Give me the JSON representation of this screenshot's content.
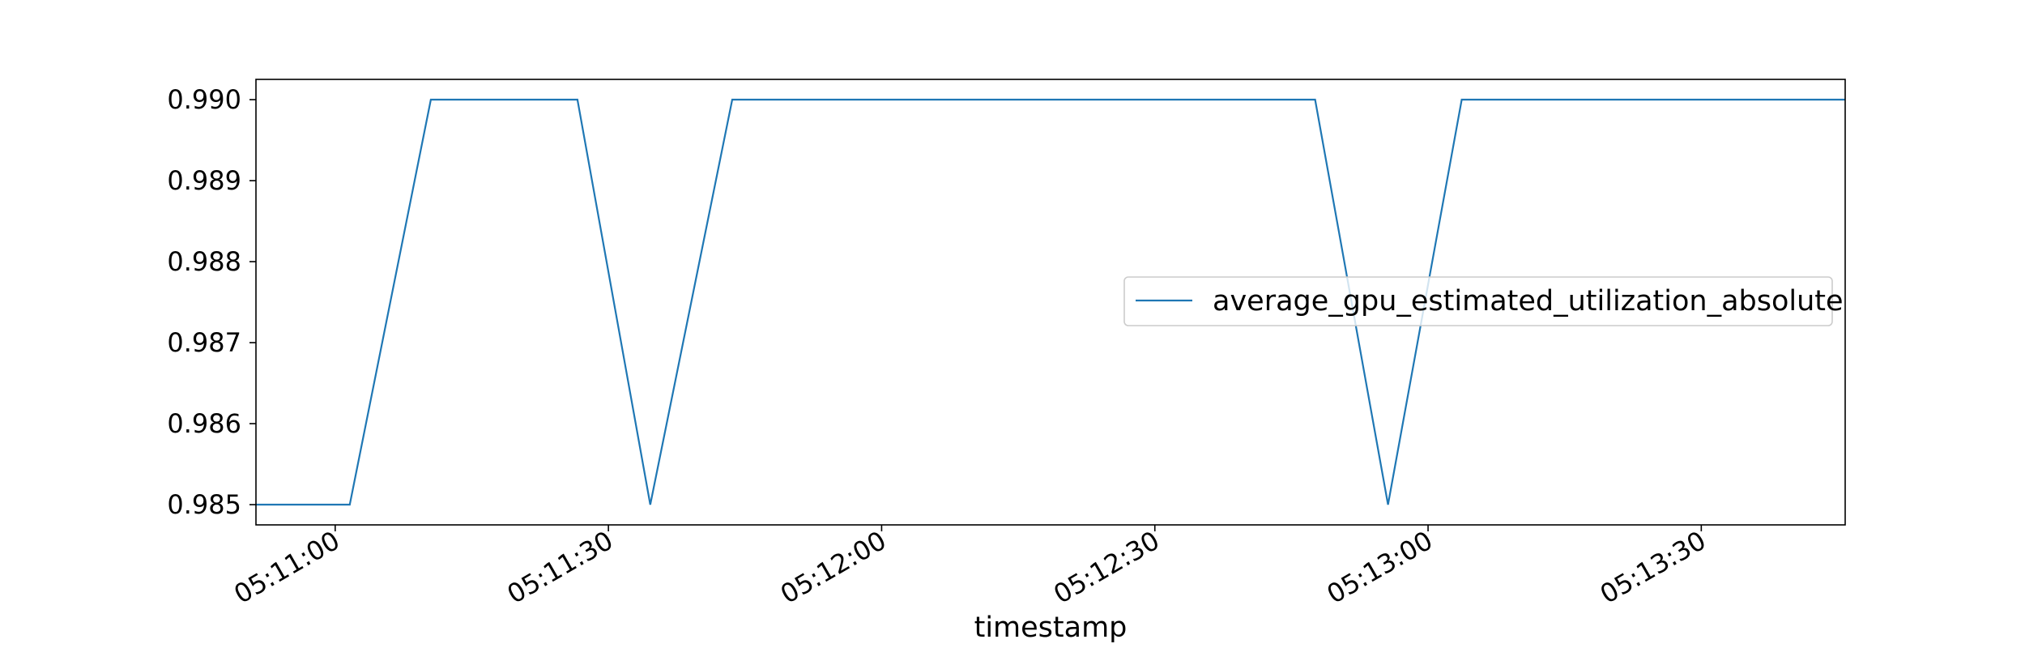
{
  "chart_data": {
    "type": "line",
    "title": "",
    "xlabel": "timestamp",
    "ylabel": "",
    "x_tick_labels": [
      "05:11:00",
      "05:11:30",
      "05:12:00",
      "05:12:30",
      "05:13:00",
      "05:13:30"
    ],
    "x_tick_values_sec": [
      0,
      30,
      60,
      90,
      120,
      150
    ],
    "y_tick_labels": [
      "0.985",
      "0.986",
      "0.987",
      "0.988",
      "0.989",
      "0.990"
    ],
    "y_tick_values": [
      0.985,
      0.986,
      0.987,
      0.988,
      0.989,
      0.99
    ],
    "xlim_sec": [
      -8.7,
      165.8
    ],
    "ylim": [
      0.98475,
      0.99025
    ],
    "grid": false,
    "legend_position": "center-right",
    "colors": {
      "series": "#1f77b4",
      "axes": "#000000"
    },
    "series": [
      {
        "name": "average_gpu_estimated_utilization_absolute",
        "x_sec": [
          -8.7,
          1.6,
          10.5,
          26.6,
          34.6,
          43.6,
          107.6,
          115.6,
          123.7,
          165.8
        ],
        "values": [
          0.985,
          0.985,
          0.99,
          0.99,
          0.985,
          0.99,
          0.99,
          0.985,
          0.99,
          0.99
        ]
      }
    ]
  }
}
